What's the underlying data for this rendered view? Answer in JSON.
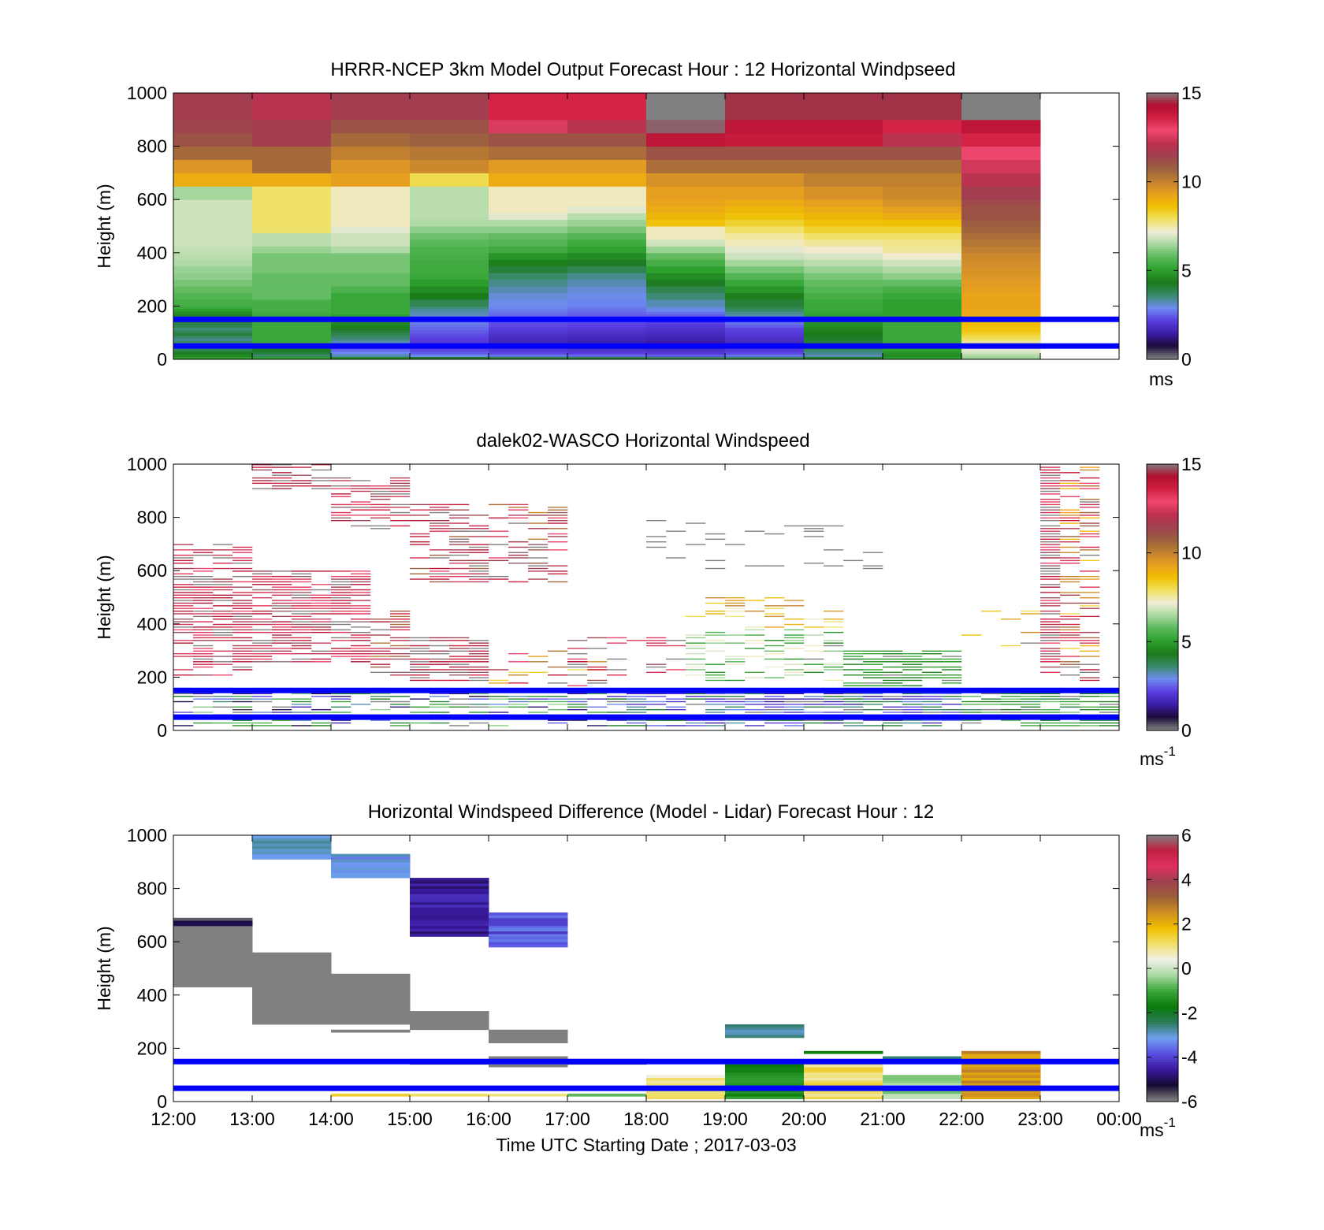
{
  "colors": {
    "speed_colormap": [
      "#808080",
      "#1a0a3a",
      "#3b1ea8",
      "#5a3ee0",
      "#6e8cf0",
      "#3a8a6a",
      "#1a7a1a",
      "#2ea02e",
      "#5ab85a",
      "#a8d8a0",
      "#f0ecd8",
      "#f0e060",
      "#f0c000",
      "#e8a020",
      "#c08030",
      "#9a6040",
      "#a04050",
      "#c03050",
      "#f04870",
      "#d02040",
      "#b01030",
      "#808080"
    ],
    "diff_colormap": [
      "#808080",
      "#150a30",
      "#3a1aa0",
      "#5a4ee0",
      "#6ea0f0",
      "#2a7a5a",
      "#0a7a0a",
      "#3aa63a",
      "#a8d8a0",
      "#f0f0e8",
      "#f0e070",
      "#f0c000",
      "#d09020",
      "#9a6038",
      "#a04050",
      "#e03060",
      "#c02040",
      "#808080"
    ],
    "reference_line": "#0000ff"
  },
  "x_axis": {
    "tick_labels": [
      "12:00",
      "13:00",
      "14:00",
      "15:00",
      "16:00",
      "17:00",
      "18:00",
      "19:00",
      "20:00",
      "21:00",
      "22:00",
      "23:00",
      "00:00"
    ],
    "label": "Time UTC  Starting Date ; 2017-03-03"
  },
  "chart_data": [
    {
      "type": "heatmap",
      "title": "HRRR-NCEP 3km Model Output   Forecast Hour : 12 Horizontal Windpseed",
      "ylabel": "Height (m)",
      "ylim": [
        0,
        1000
      ],
      "yticks": [
        "0",
        "200",
        "400",
        "600",
        "800",
        "1000"
      ],
      "colorbar": {
        "ticks": [
          "0",
          "5",
          "10",
          "15"
        ],
        "range": [
          0,
          15
        ],
        "unit": "ms",
        "unit_sup": ""
      },
      "reference_lines_m": [
        50,
        150
      ],
      "hours": [
        12,
        13,
        14,
        15,
        16,
        17,
        18,
        19,
        20,
        21,
        22
      ],
      "levels_m": [
        0,
        10,
        20,
        30,
        40,
        50,
        60,
        70,
        80,
        90,
        100,
        110,
        120,
        130,
        140,
        150,
        160,
        170,
        180,
        190,
        200,
        225,
        250,
        275,
        300,
        325,
        350,
        375,
        400,
        425,
        450,
        475,
        500,
        525,
        550,
        575,
        600,
        650,
        700,
        750,
        800,
        850,
        900,
        950,
        1000
      ],
      "values": [
        [
          5,
          4.6,
          4.2,
          3.8,
          3.4,
          3.2,
          3.6,
          3.4,
          3.6,
          4,
          3.7,
          3.5,
          3.8,
          3.9,
          4,
          4.3,
          4.5,
          4.7,
          4.9,
          5.2,
          5.4,
          5.6,
          5.8,
          6,
          6.2,
          6.3,
          6.5,
          6.6,
          6.7,
          6.8,
          6.8,
          6.8,
          6.8,
          6.8,
          6.8,
          6.8,
          6.4,
          9,
          9.5,
          10.5,
          11,
          11.3,
          11.5,
          11.5
        ],
        [
          5,
          3.6,
          4,
          4.2,
          4.6,
          4.9,
          5.2,
          5.2,
          5.2,
          5.2,
          5.2,
          5.2,
          5.2,
          5.2,
          5.2,
          5.2,
          5.2,
          5.3,
          5.4,
          5.4,
          5.4,
          5.8,
          5.8,
          5.8,
          5.8,
          6,
          6,
          6,
          6.3,
          6.6,
          6.6,
          7.8,
          7.8,
          7.8,
          7.8,
          7.8,
          7.8,
          9,
          10.5,
          10.5,
          11.5,
          11.5,
          12,
          12
        ],
        [
          4.6,
          3.2,
          2.8,
          2.5,
          2.2,
          2.6,
          3.2,
          3.4,
          3.6,
          3.8,
          4,
          4.2,
          4.4,
          4.6,
          4.8,
          5,
          5,
          5.2,
          5.2,
          5.2,
          5.2,
          5.2,
          5.5,
          5.8,
          5.8,
          6,
          6,
          6,
          6.5,
          6.8,
          6.8,
          7,
          7.3,
          7.3,
          7.3,
          7.3,
          7.3,
          9.3,
          9.5,
          10,
          10.5,
          11,
          11.5,
          11.5
        ],
        [
          4.2,
          2.8,
          2.4,
          2.2,
          2,
          1.8,
          2,
          2.1,
          2.2,
          2.3,
          2.4,
          2.5,
          2.6,
          2.7,
          2.9,
          3,
          3.1,
          3.2,
          3.3,
          3.5,
          3.8,
          4.3,
          4.6,
          4.9,
          5.2,
          5.3,
          5.3,
          5.4,
          5.5,
          5.7,
          5.9,
          6.2,
          6.5,
          6.6,
          6.6,
          6.6,
          6.6,
          8,
          9.8,
          10.2,
          10.7,
          11,
          11.5,
          11.5
        ],
        [
          4,
          2.6,
          2.2,
          2,
          1.8,
          1.6,
          1.6,
          1.7,
          1.8,
          1.9,
          2,
          2.1,
          2.2,
          2.3,
          2.4,
          2.4,
          2.5,
          2.6,
          2.7,
          2.8,
          2.9,
          3,
          3.2,
          3.4,
          3.6,
          4,
          4.4,
          4.8,
          5.3,
          5.6,
          5.8,
          6.2,
          6.5,
          7,
          7.3,
          7.3,
          7.3,
          9,
          9.4,
          10.4,
          11,
          12.5,
          13.5,
          13.5
        ],
        [
          4,
          2.5,
          2.1,
          1.9,
          1.7,
          1.5,
          1.5,
          1.6,
          1.7,
          1.8,
          1.9,
          2,
          2.1,
          2.2,
          2.3,
          2.3,
          2.4,
          2.5,
          2.6,
          2.7,
          2.8,
          2.9,
          3,
          3.2,
          3.4,
          3.8,
          4.2,
          4.6,
          5,
          5.3,
          5.6,
          6,
          6.3,
          6.6,
          7,
          7.3,
          7.3,
          9,
          9.4,
          10.4,
          11,
          12,
          13.5,
          13.5
        ],
        [
          3.8,
          2.4,
          2,
          1.8,
          1.6,
          1.4,
          1.4,
          1.5,
          1.6,
          1.7,
          1.8,
          1.9,
          2,
          2.1,
          2.2,
          2.3,
          2.4,
          2.6,
          2.8,
          3,
          3.2,
          3.5,
          3.8,
          4.2,
          4.6,
          5,
          5.4,
          5.8,
          6.3,
          6.8,
          7.3,
          7.3,
          8.5,
          8.8,
          9,
          9.2,
          9.3,
          9.6,
          10.4,
          11,
          14,
          14.8,
          15,
          15
        ],
        [
          3.8,
          2.6,
          2.2,
          2,
          1.8,
          1.6,
          1.7,
          1.8,
          1.9,
          2,
          2.1,
          2.2,
          2.4,
          2.6,
          2.8,
          3,
          3.2,
          3.4,
          3.6,
          3.8,
          4,
          4.4,
          4.8,
          5.2,
          5.6,
          6,
          6.4,
          6.8,
          7,
          7.3,
          7.5,
          7.8,
          8.2,
          8.5,
          8.8,
          9,
          9.3,
          9.6,
          10.4,
          11,
          13.8,
          14,
          14.5,
          14.5
        ],
        [
          4.2,
          3.2,
          3.4,
          3.6,
          3.8,
          4,
          4,
          4.1,
          4.2,
          4.3,
          4.4,
          4.5,
          4.6,
          4.7,
          4.8,
          4.9,
          5,
          5.1,
          5.2,
          5.2,
          5.2,
          5.4,
          5.6,
          5.8,
          6,
          6.3,
          6.6,
          6.9,
          7.2,
          7.5,
          7.8,
          8.2,
          8.5,
          8.8,
          9,
          9.3,
          9.6,
          10,
          10.4,
          11,
          13.8,
          14,
          14.5,
          14.5
        ],
        [
          5,
          4.6,
          4.8,
          5,
          5.1,
          5.2,
          5.2,
          5.2,
          5.2,
          5.2,
          5.2,
          5.2,
          5.2,
          5.2,
          5.2,
          5.2,
          5.1,
          5,
          5,
          5,
          5,
          5.2,
          5.4,
          5.8,
          6.2,
          6.5,
          6.8,
          7.2,
          7.5,
          7.6,
          7.8,
          8.2,
          8.6,
          9,
          9.3,
          9.6,
          9.8,
          10,
          10.4,
          11,
          12,
          13.5,
          14.5,
          14.5
        ],
        [
          6.3,
          6.5,
          6.8,
          7,
          7.2,
          7.3,
          7.5,
          7.8,
          8,
          8.2,
          8.4,
          8.5,
          8.6,
          8.7,
          8.8,
          8.9,
          9,
          9.1,
          9.1,
          9.2,
          9.2,
          9.2,
          9.3,
          9.4,
          9.5,
          9.6,
          9.7,
          9.8,
          10,
          10.2,
          10.4,
          10.6,
          10.8,
          11,
          11,
          11.2,
          11.5,
          12,
          12.4,
          12.8,
          13.5,
          14,
          15,
          15
        ]
      ]
    },
    {
      "type": "heatmap",
      "title": "dalek02-WASCO  Horizontal Windspeed",
      "ylabel": "Height (m)",
      "ylim": [
        0,
        1000
      ],
      "yticks": [
        "0",
        "200",
        "400",
        "600",
        "800",
        "1000"
      ],
      "colorbar": {
        "ticks": [
          "0",
          "5",
          "10",
          "15"
        ],
        "range": [
          0,
          15
        ],
        "unit": "ms",
        "unit_sup": "-1"
      },
      "reference_lines_m": [
        50,
        150
      ],
      "column_minutes": 15,
      "row_meters": 10,
      "regions": [
        {
          "t0": 12.0,
          "t1": 13.0,
          "h0": 200,
          "h1": 700,
          "v_mid": 13.5,
          "spread": 1.8,
          "density": 0.7
        },
        {
          "t0": 13.0,
          "t1": 14.0,
          "h0": 900,
          "h1": 1000,
          "v_mid": 14.5,
          "spread": 1.0,
          "density": 0.7
        },
        {
          "t0": 13.0,
          "t1": 14.5,
          "h0": 250,
          "h1": 600,
          "v_mid": 13.5,
          "spread": 1.6,
          "density": 0.75
        },
        {
          "t0": 14.0,
          "t1": 15.0,
          "h0": 750,
          "h1": 950,
          "v_mid": 13.5,
          "spread": 1.8,
          "density": 0.65
        },
        {
          "t0": 14.5,
          "t1": 15.0,
          "h0": 200,
          "h1": 450,
          "v_mid": 12.5,
          "spread": 2.5,
          "density": 0.6
        },
        {
          "t0": 15.0,
          "t1": 16.0,
          "h0": 550,
          "h1": 850,
          "v_mid": 13,
          "spread": 2.5,
          "density": 0.65
        },
        {
          "t0": 15.0,
          "t1": 16.0,
          "h0": 180,
          "h1": 350,
          "v_mid": 14.5,
          "spread": 1.0,
          "density": 0.8
        },
        {
          "t0": 16.0,
          "t1": 17.0,
          "h0": 550,
          "h1": 850,
          "v_mid": 12.5,
          "spread": 2.8,
          "density": 0.45
        },
        {
          "t0": 16.0,
          "t1": 17.5,
          "h0": 150,
          "h1": 300,
          "v_mid": 11,
          "spread": 3.5,
          "density": 0.35
        },
        {
          "t0": 17.0,
          "t1": 18.5,
          "h0": 200,
          "h1": 350,
          "v_mid": 14,
          "spread": 2.0,
          "density": 0.25
        },
        {
          "t0": 18.5,
          "t1": 20.5,
          "h0": 380,
          "h1": 500,
          "v_mid": 8.5,
          "spread": 1.5,
          "density": 0.35
        },
        {
          "t0": 18.5,
          "t1": 20.5,
          "h0": 180,
          "h1": 380,
          "v_mid": 6,
          "spread": 1.5,
          "density": 0.45
        },
        {
          "t0": 20.5,
          "t1": 22.0,
          "h0": 150,
          "h1": 300,
          "v_mid": 4.8,
          "spread": 0.6,
          "density": 0.7
        },
        {
          "t0": 22.0,
          "t1": 23.0,
          "h0": 300,
          "h1": 450,
          "v_mid": 8.8,
          "spread": 1.0,
          "density": 0.25
        },
        {
          "t0": 23.0,
          "t1": 23.25,
          "h0": 200,
          "h1": 1000,
          "v_mid": 13.5,
          "spread": 2.0,
          "density": 0.85
        },
        {
          "t0": 23.25,
          "t1": 23.75,
          "h0": 180,
          "h1": 1000,
          "v_mid": 11,
          "spread": 3.0,
          "density": 0.55
        },
        {
          "t0": 17.5,
          "t1": 22.0,
          "h0": 10,
          "h1": 150,
          "v_mid": 2.8,
          "spread": 1.6,
          "density": 0.8
        },
        {
          "t0": 12.0,
          "t1": 17.5,
          "h0": 10,
          "h1": 150,
          "v_mid": 3.5,
          "spread": 3.0,
          "density": 0.5
        },
        {
          "t0": 22.0,
          "t1": 24.0,
          "h0": 10,
          "h1": 150,
          "v_mid": 4.8,
          "spread": 1.2,
          "density": 0.75
        },
        {
          "t0": 18.0,
          "t1": 21.0,
          "h0": 600,
          "h1": 800,
          "v_mid": 0,
          "spread": 0,
          "density": 0.12
        }
      ]
    },
    {
      "type": "heatmap",
      "title": "Horizontal Windspeed Difference (Model - Lidar) Forecast Hour : 12",
      "ylabel": "Height (m)",
      "xlabel": "Time UTC  Starting Date ; 2017-03-03",
      "ylim": [
        0,
        1000
      ],
      "yticks": [
        "0",
        "200",
        "400",
        "600",
        "800",
        "1000"
      ],
      "colorbar": {
        "ticks": [
          "-6",
          "-4",
          "-2",
          "0",
          "2",
          "4",
          "6"
        ],
        "range": [
          -6,
          6
        ],
        "unit": "ms",
        "unit_sup": "-1"
      },
      "reference_lines_m": [
        50,
        150
      ],
      "hours": [
        12,
        13,
        14,
        15,
        16,
        17,
        18,
        19,
        20,
        21,
        22
      ],
      "blocks": [
        {
          "hour": 12,
          "h0": 430,
          "h1": 660,
          "v": -6
        },
        {
          "hour": 12,
          "h0": 660,
          "h1": 690,
          "v": -5.4
        },
        {
          "hour": 13,
          "h0": 290,
          "h1": 560,
          "v": -6
        },
        {
          "hour": 13,
          "h0": 910,
          "h1": 1000,
          "v": -3
        },
        {
          "hour": 14,
          "h0": 290,
          "h1": 480,
          "v": -6
        },
        {
          "hour": 14,
          "h0": 260,
          "h1": 270,
          "v": -6
        },
        {
          "hour": 14,
          "h0": 840,
          "h1": 930,
          "v": -3.2
        },
        {
          "hour": 14,
          "h0": 20,
          "h1": 30,
          "v": 1.2
        },
        {
          "hour": 15,
          "h0": 270,
          "h1": 340,
          "v": -6
        },
        {
          "hour": 15,
          "h0": 620,
          "h1": 840,
          "v": -4.6
        },
        {
          "hour": 15,
          "h0": 140,
          "h1": 160,
          "v": -5
        },
        {
          "hour": 15,
          "h0": 20,
          "h1": 30,
          "v": 1.2
        },
        {
          "hour": 16,
          "h0": 220,
          "h1": 270,
          "v": -6
        },
        {
          "hour": 16,
          "h0": 580,
          "h1": 710,
          "v": -3.8
        },
        {
          "hour": 16,
          "h0": 130,
          "h1": 170,
          "v": -6
        },
        {
          "hour": 16,
          "h0": 20,
          "h1": 30,
          "v": 1
        },
        {
          "hour": 17,
          "h0": 140,
          "h1": 160,
          "v": -5
        },
        {
          "hour": 17,
          "h0": 20,
          "h1": 30,
          "v": -1.2
        },
        {
          "hour": 18,
          "h0": 10,
          "h1": 100,
          "v": 0.8
        },
        {
          "hour": 19,
          "h0": 240,
          "h1": 290,
          "v": -2.8
        },
        {
          "hour": 19,
          "h0": 10,
          "h1": 150,
          "v": -1.4
        },
        {
          "hour": 20,
          "h0": 10,
          "h1": 150,
          "v": 1.1
        },
        {
          "hour": 20,
          "h0": 180,
          "h1": 190,
          "v": -2
        },
        {
          "hour": 21,
          "h0": 10,
          "h1": 100,
          "v": -0.4
        },
        {
          "hour": 21,
          "h0": 160,
          "h1": 170,
          "v": -2.4
        },
        {
          "hour": 22,
          "h0": 10,
          "h1": 190,
          "v": 2.4
        }
      ]
    }
  ]
}
